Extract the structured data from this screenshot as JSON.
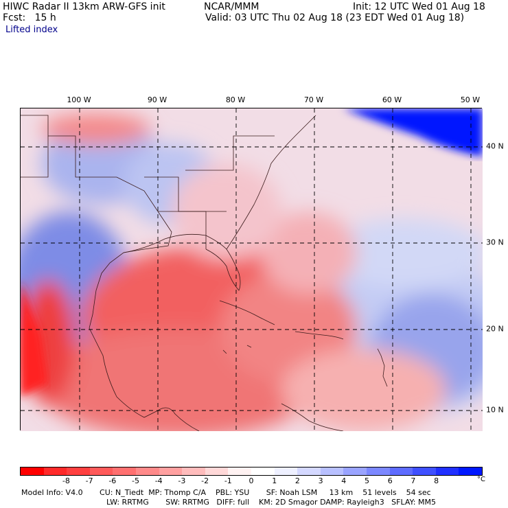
{
  "header": {
    "title": "HIWC Radar II 13km ARW-GFS init",
    "org": "NCAR/MMM",
    "init": "Init: 12 UTC Wed 01 Aug 18",
    "fcst": "Fcst:   15 h",
    "valid": "Valid: 03 UTC Thu 02 Aug 18 (23 EDT Wed 01 Aug 18)",
    "field": "Lifted index"
  },
  "lon_labels": [
    "100 W",
    "90 W",
    "80 W",
    "70 W",
    "60 W",
    "50 W"
  ],
  "lat_labels": [
    "40 N",
    "30 N",
    "20 N",
    "10 N"
  ],
  "colorbar": {
    "ticks": [
      "-8",
      "-7",
      "-6",
      "-5",
      "-4",
      "-3",
      "-2",
      "-1",
      "0",
      "1",
      "2",
      "3",
      "4",
      "5",
      "6",
      "7",
      "8"
    ],
    "unit": "°C",
    "colors": [
      "#ff0000",
      "#ff2a2a",
      "#ff4040",
      "#ff5a5a",
      "#ff7070",
      "#ff8a8a",
      "#ffa0a0",
      "#ffbcbc",
      "#ffd8d8",
      "#fff2f2",
      "#ffffff",
      "#eef0ff",
      "#d4d8ff",
      "#b8c0ff",
      "#9aa4ff",
      "#7c88ff",
      "#5e6cff",
      "#3f50ff",
      "#2030ff",
      "#0018ff"
    ]
  },
  "model_info": {
    "line1": "Model Info: V4.0       CU: N_Tiedt  MP: Thomp C/A    PBL: YSU       SF: Noah LSM     13 km    51 levels    54 sec",
    "line2": "LW: RRTMG       SW: RRTMG   DIFF: full    KM: 2D Smagor DAMP: Rayleigh3   SFLAY: MM5"
  },
  "map": {
    "field_colors": {
      "unstable": "#f05050",
      "mild": "#f7a8a8",
      "neutral": "#f4e4ea",
      "stable": "#c8d0f4",
      "very_stable": "#5868e8",
      "extreme": "#0010ff"
    }
  }
}
